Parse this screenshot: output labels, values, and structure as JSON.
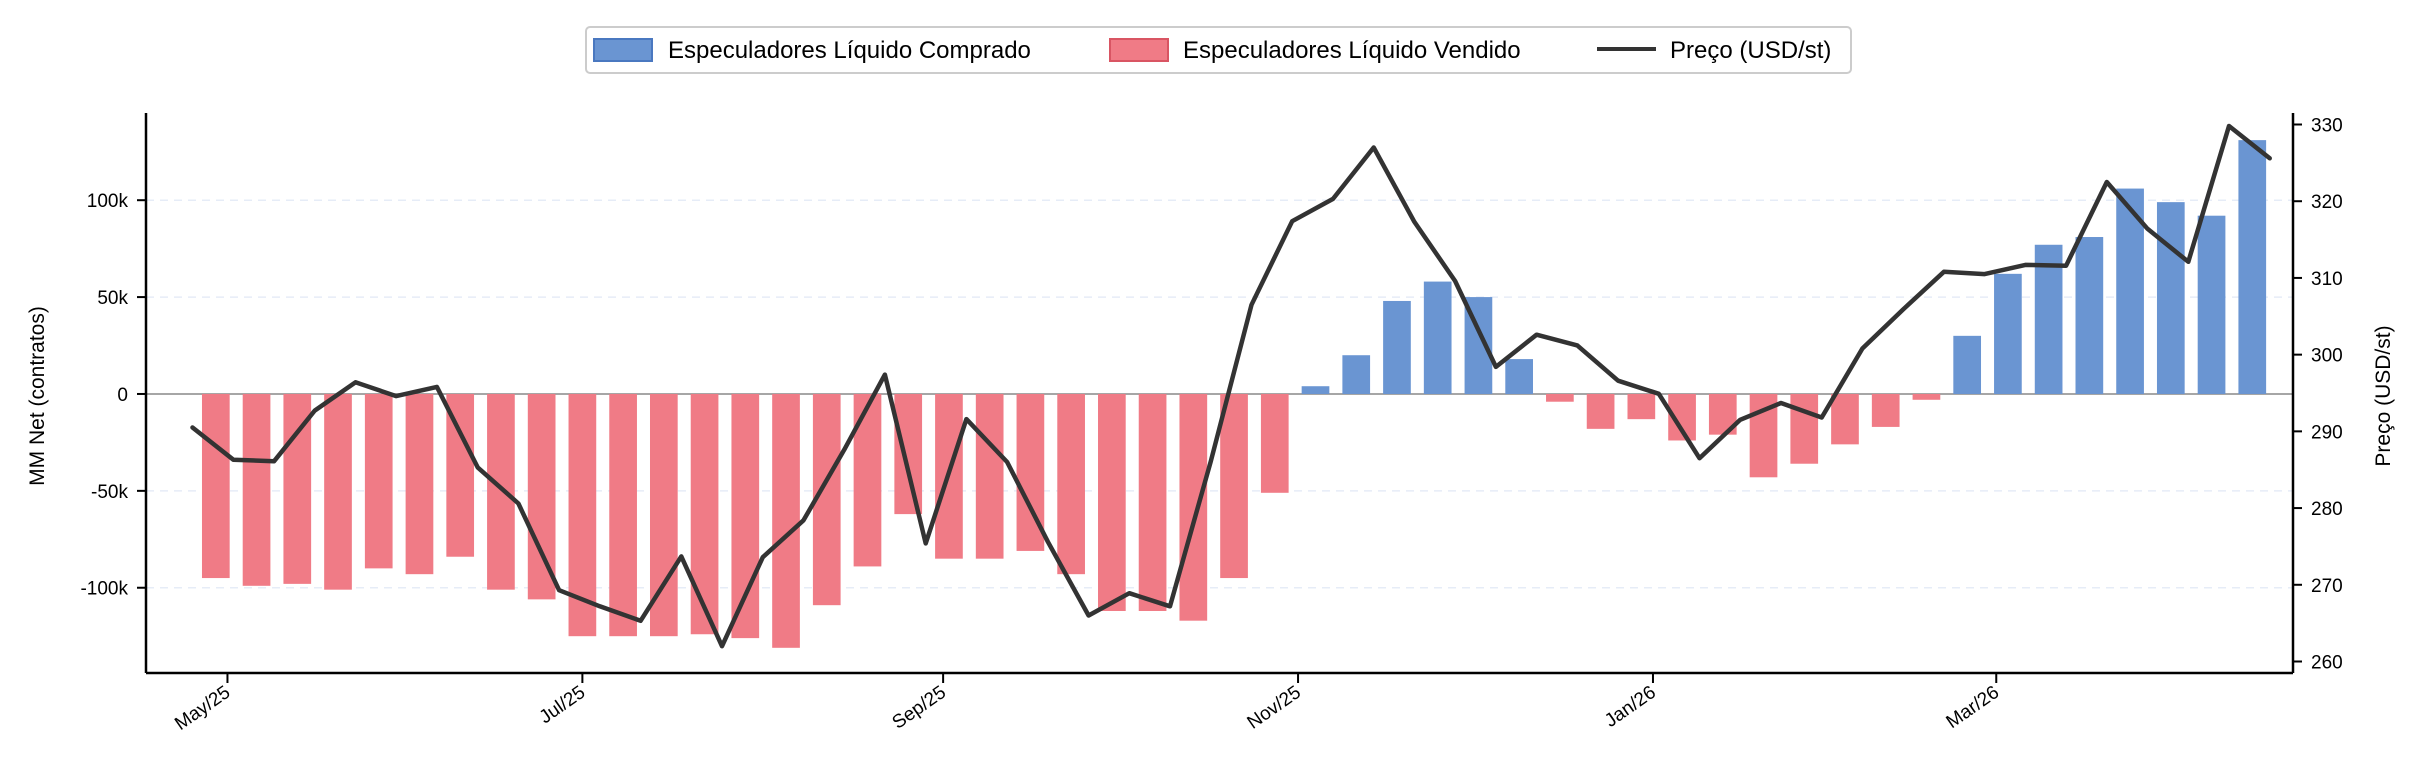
{
  "chart_data": {
    "type": "bar",
    "legend": {
      "position": "top-center",
      "items": [
        {
          "label": "Especuladores Líquido Comprado",
          "kind": "bar",
          "color": "#6a95d2"
        },
        {
          "label": "Especuladores Líquido Vendido",
          "kind": "bar",
          "color": "#f07b86"
        },
        {
          "label": "Preço (USD/st)",
          "kind": "line",
          "color": "#333333"
        }
      ]
    },
    "x_axis": {
      "tick_labels": [
        "May/25",
        "Jul/25",
        "Sep/25",
        "Nov/25",
        "Jan/26",
        "Mar/26"
      ],
      "tick_dates": [
        "2025-05-01",
        "2025-07-01",
        "2025-09-01",
        "2025-11-01",
        "2026-01-01",
        "2026-03-01"
      ],
      "xlim": [
        "2025-04-17",
        "2026-04-21"
      ]
    },
    "y_left": {
      "label": "MM Net (contratos)",
      "ticks": [
        -100000,
        -50000,
        0,
        50000,
        100000
      ],
      "tick_labels": [
        "-100k",
        "-50k",
        "0",
        "50k",
        "100k"
      ],
      "ylim": [
        -144000,
        145000
      ],
      "grid": true
    },
    "y_right": {
      "label": "Preço (USD/st)",
      "ticks": [
        260,
        270,
        280,
        290,
        300,
        310,
        320,
        330
      ],
      "tick_labels": [
        "260",
        "270",
        "280",
        "290",
        "300",
        "310",
        "320",
        "330"
      ],
      "ylim": [
        258.5,
        331.5
      ]
    },
    "colors": {
      "long": "#6a95d2",
      "short": "#f07b86",
      "price": "#333333",
      "zero_line": "#888888",
      "grid": "#e6ecf7"
    },
    "series": [
      {
        "name": "MM Net",
        "x": [
          "2025-04-29",
          "2025-05-06",
          "2025-05-13",
          "2025-05-20",
          "2025-05-27",
          "2025-06-03",
          "2025-06-10",
          "2025-06-17",
          "2025-06-24",
          "2025-07-01",
          "2025-07-08",
          "2025-07-15",
          "2025-07-22",
          "2025-07-29",
          "2025-08-05",
          "2025-08-12",
          "2025-08-19",
          "2025-08-26",
          "2025-09-02",
          "2025-09-09",
          "2025-09-16",
          "2025-09-23",
          "2025-09-30",
          "2025-10-07",
          "2025-10-14",
          "2025-10-21",
          "2025-10-28",
          "2025-11-04",
          "2025-11-11",
          "2025-11-18",
          "2025-11-25",
          "2025-12-02",
          "2025-12-09",
          "2025-12-16",
          "2025-12-23",
          "2025-12-30",
          "2026-01-06",
          "2026-01-13",
          "2026-01-20",
          "2026-01-27",
          "2026-02-03",
          "2026-02-10",
          "2026-02-17",
          "2026-02-24",
          "2026-03-03",
          "2026-03-10",
          "2026-03-17",
          "2026-03-24",
          "2026-03-31",
          "2026-04-07",
          "2026-04-14"
        ],
        "values": [
          -95000,
          -99000,
          -98000,
          -101000,
          -90000,
          -93000,
          -84000,
          -101000,
          -106000,
          -125000,
          -125000,
          -125000,
          -124000,
          -126000,
          -131000,
          -109000,
          -89000,
          -62000,
          -85000,
          -85000,
          -81000,
          -93000,
          -112000,
          -112000,
          -117000,
          -95000,
          -51000,
          4000,
          20000,
          48000,
          58000,
          50000,
          18000,
          -4000,
          -18000,
          -13000,
          -24000,
          -21000,
          -43000,
          -36000,
          -26000,
          -17000,
          -3000,
          30000,
          62000,
          77000,
          81000,
          106000,
          99000,
          92000,
          131000
        ]
      },
      {
        "name": "Preço (USD/st)",
        "x": [
          "2025-04-25",
          "2025-05-02",
          "2025-05-09",
          "2025-05-16",
          "2025-05-23",
          "2025-05-30",
          "2025-06-06",
          "2025-06-13",
          "2025-06-20",
          "2025-06-27",
          "2025-07-04",
          "2025-07-11",
          "2025-07-18",
          "2025-07-25",
          "2025-08-01",
          "2025-08-08",
          "2025-08-15",
          "2025-08-22",
          "2025-08-29",
          "2025-09-05",
          "2025-09-12",
          "2025-09-19",
          "2025-09-26",
          "2025-10-03",
          "2025-10-10",
          "2025-10-17",
          "2025-10-24",
          "2025-10-31",
          "2025-11-07",
          "2025-11-14",
          "2025-11-21",
          "2025-11-28",
          "2025-12-05",
          "2025-12-12",
          "2025-12-19",
          "2025-12-26",
          "2026-01-02",
          "2026-01-09",
          "2026-01-16",
          "2026-01-23",
          "2026-01-30",
          "2026-02-06",
          "2026-02-13",
          "2026-02-20",
          "2026-02-27",
          "2026-03-06",
          "2026-03-13",
          "2026-03-20",
          "2026-03-27",
          "2026-04-03",
          "2026-04-10",
          "2026-04-17"
        ],
        "values": [
          290.5,
          286.3,
          286.1,
          292.7,
          296.4,
          294.6,
          295.8,
          285.3,
          280.6,
          269.3,
          267.2,
          265.3,
          273.7,
          262.0,
          273.6,
          278.4,
          287.6,
          297.4,
          275.4,
          291.6,
          286.0,
          275.6,
          266.0,
          268.9,
          267.2,
          286.1,
          306.5,
          317.4,
          320.3,
          327.0,
          317.3,
          309.6,
          298.4,
          302.6,
          301.2,
          296.6,
          294.9,
          286.5,
          291.5,
          293.7,
          291.8,
          300.8,
          305.9,
          310.8,
          310.5,
          311.7,
          311.6,
          322.5,
          316.4,
          312.1,
          329.8,
          325.6
        ]
      }
    ]
  }
}
